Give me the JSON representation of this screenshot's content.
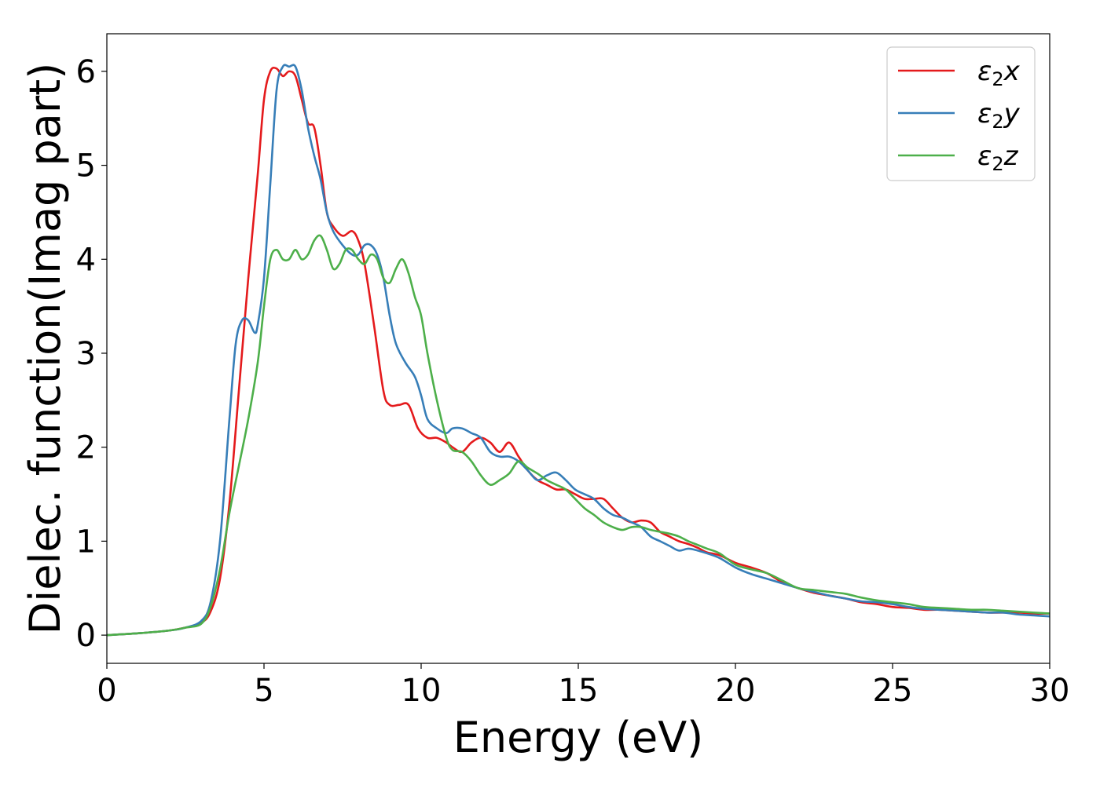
{
  "chart_data": {
    "type": "line",
    "title": "",
    "xlabel": "Energy (eV)",
    "ylabel": "Dielec. function(Imag part)",
    "xlim": [
      0,
      30
    ],
    "ylim": [
      -0.3,
      6.4
    ],
    "xticks": [
      0,
      5,
      10,
      15,
      20,
      25,
      30
    ],
    "yticks": [
      0,
      1,
      2,
      3,
      4,
      5,
      6
    ],
    "grid": false,
    "legend_position": "top-right",
    "series": [
      {
        "name": "ε2x",
        "legend_base": "ε",
        "legend_sub": "2",
        "legend_suffix": "x",
        "color": "#e41a1c",
        "x": [
          0,
          1,
          2,
          2.5,
          3,
          3.3,
          3.6,
          3.9,
          4.2,
          4.5,
          4.8,
          5,
          5.2,
          5.4,
          5.6,
          5.8,
          6,
          6.2,
          6.4,
          6.6,
          6.8,
          7,
          7.2,
          7.5,
          7.8,
          8,
          8.2,
          8.5,
          8.8,
          9,
          9.3,
          9.6,
          9.9,
          10.2,
          10.5,
          10.8,
          11,
          11.3,
          11.6,
          11.9,
          12.2,
          12.5,
          12.8,
          13.1,
          13.4,
          13.7,
          14,
          14.3,
          14.6,
          14.9,
          15.2,
          15.5,
          15.8,
          16.1,
          16.4,
          16.7,
          17,
          17.3,
          17.6,
          17.9,
          18.2,
          18.5,
          18.8,
          19.1,
          19.5,
          20,
          20.5,
          21,
          21.5,
          22,
          22.5,
          23,
          23.5,
          24,
          24.5,
          25,
          25.5,
          26,
          26.5,
          27,
          27.5,
          28,
          28.5,
          29,
          29.5,
          30
        ],
        "y": [
          0,
          0.02,
          0.05,
          0.08,
          0.13,
          0.25,
          0.6,
          1.4,
          2.6,
          3.8,
          4.9,
          5.7,
          6.0,
          6.03,
          5.95,
          6.0,
          5.95,
          5.7,
          5.45,
          5.4,
          5.0,
          4.5,
          4.35,
          4.25,
          4.3,
          4.2,
          3.95,
          3.3,
          2.6,
          2.45,
          2.45,
          2.45,
          2.2,
          2.1,
          2.1,
          2.05,
          2.0,
          1.95,
          2.05,
          2.1,
          2.05,
          1.95,
          2.05,
          1.9,
          1.75,
          1.65,
          1.6,
          1.55,
          1.55,
          1.5,
          1.45,
          1.45,
          1.45,
          1.35,
          1.25,
          1.2,
          1.22,
          1.2,
          1.1,
          1.05,
          1.0,
          0.97,
          0.93,
          0.88,
          0.85,
          0.77,
          0.72,
          0.66,
          0.56,
          0.5,
          0.45,
          0.42,
          0.39,
          0.35,
          0.33,
          0.3,
          0.29,
          0.27,
          0.27,
          0.26,
          0.25,
          0.24,
          0.24,
          0.24,
          0.23,
          0.23
        ]
      },
      {
        "name": "ε2y",
        "legend_base": "ε",
        "legend_sub": "2",
        "legend_suffix": "y",
        "color": "#377eb8",
        "x": [
          0,
          1,
          2,
          2.5,
          3,
          3.3,
          3.6,
          3.9,
          4.1,
          4.3,
          4.5,
          4.7,
          4.8,
          5,
          5.2,
          5.4,
          5.6,
          5.8,
          6,
          6.2,
          6.4,
          6.6,
          6.8,
          7,
          7.2,
          7.5,
          7.8,
          8,
          8.2,
          8.4,
          8.6,
          8.8,
          9,
          9.2,
          9.5,
          9.8,
          10,
          10.2,
          10.5,
          10.8,
          11,
          11.3,
          11.6,
          11.9,
          12.2,
          12.5,
          12.8,
          13.1,
          13.4,
          13.7,
          14,
          14.3,
          14.6,
          14.9,
          15.2,
          15.5,
          15.8,
          16.1,
          16.4,
          16.7,
          17,
          17.3,
          17.6,
          17.9,
          18.2,
          18.5,
          18.8,
          19.1,
          19.5,
          20,
          20.5,
          21,
          21.5,
          22,
          22.5,
          23,
          23.5,
          24,
          24.5,
          25,
          25.5,
          26,
          26.5,
          27,
          27.5,
          28,
          28.5,
          29,
          29.5,
          30
        ],
        "y": [
          0,
          0.02,
          0.05,
          0.08,
          0.15,
          0.35,
          1.0,
          2.3,
          3.1,
          3.35,
          3.35,
          3.22,
          3.3,
          3.8,
          4.8,
          5.8,
          6.05,
          6.05,
          6.05,
          5.8,
          5.4,
          5.1,
          4.85,
          4.5,
          4.3,
          4.15,
          4.05,
          4.05,
          4.15,
          4.15,
          4.05,
          3.8,
          3.4,
          3.1,
          2.9,
          2.75,
          2.55,
          2.3,
          2.2,
          2.15,
          2.2,
          2.2,
          2.15,
          2.1,
          1.95,
          1.9,
          1.9,
          1.85,
          1.75,
          1.65,
          1.7,
          1.73,
          1.65,
          1.55,
          1.5,
          1.45,
          1.35,
          1.28,
          1.25,
          1.2,
          1.15,
          1.05,
          1.0,
          0.95,
          0.9,
          0.92,
          0.9,
          0.87,
          0.82,
          0.72,
          0.65,
          0.6,
          0.55,
          0.5,
          0.46,
          0.42,
          0.39,
          0.36,
          0.35,
          0.33,
          0.3,
          0.28,
          0.27,
          0.26,
          0.25,
          0.24,
          0.24,
          0.22,
          0.21,
          0.2
        ]
      },
      {
        "name": "ε2z",
        "legend_base": "ε",
        "legend_sub": "2",
        "legend_suffix": "z",
        "color": "#4daf4a",
        "x": [
          0,
          1,
          2,
          2.5,
          3,
          3.3,
          3.6,
          3.9,
          4.2,
          4.5,
          4.8,
          5,
          5.2,
          5.4,
          5.6,
          5.8,
          6,
          6.2,
          6.4,
          6.6,
          6.8,
          7,
          7.2,
          7.4,
          7.6,
          7.8,
          8,
          8.2,
          8.4,
          8.6,
          8.8,
          9,
          9.2,
          9.4,
          9.6,
          9.8,
          10,
          10.2,
          10.5,
          10.8,
          11,
          11.3,
          11.6,
          11.9,
          12.2,
          12.5,
          12.8,
          13.1,
          13.4,
          13.7,
          14,
          14.3,
          14.6,
          14.9,
          15.2,
          15.5,
          15.8,
          16.1,
          16.4,
          16.7,
          17,
          17.3,
          17.6,
          17.9,
          18.2,
          18.5,
          18.8,
          19.1,
          19.5,
          20,
          20.5,
          21,
          21.5,
          22,
          22.5,
          23,
          23.5,
          24,
          24.5,
          25,
          25.5,
          26,
          26.5,
          27,
          27.5,
          28,
          28.5,
          29,
          29.5,
          30
        ],
        "y": [
          0,
          0.02,
          0.05,
          0.08,
          0.12,
          0.3,
          0.7,
          1.3,
          1.8,
          2.3,
          2.9,
          3.5,
          4.0,
          4.1,
          4.0,
          4.0,
          4.1,
          4.0,
          4.05,
          4.2,
          4.25,
          4.1,
          3.9,
          3.95,
          4.1,
          4.1,
          4.0,
          3.95,
          4.05,
          4.0,
          3.8,
          3.75,
          3.9,
          4.0,
          3.85,
          3.6,
          3.4,
          3.0,
          2.5,
          2.1,
          1.97,
          1.95,
          1.85,
          1.7,
          1.6,
          1.65,
          1.72,
          1.85,
          1.78,
          1.72,
          1.65,
          1.6,
          1.55,
          1.45,
          1.35,
          1.28,
          1.2,
          1.15,
          1.12,
          1.15,
          1.15,
          1.12,
          1.1,
          1.08,
          1.05,
          1.0,
          0.96,
          0.92,
          0.87,
          0.75,
          0.7,
          0.66,
          0.58,
          0.5,
          0.48,
          0.46,
          0.44,
          0.4,
          0.37,
          0.35,
          0.33,
          0.3,
          0.29,
          0.28,
          0.27,
          0.27,
          0.26,
          0.25,
          0.24,
          0.23
        ]
      }
    ]
  }
}
